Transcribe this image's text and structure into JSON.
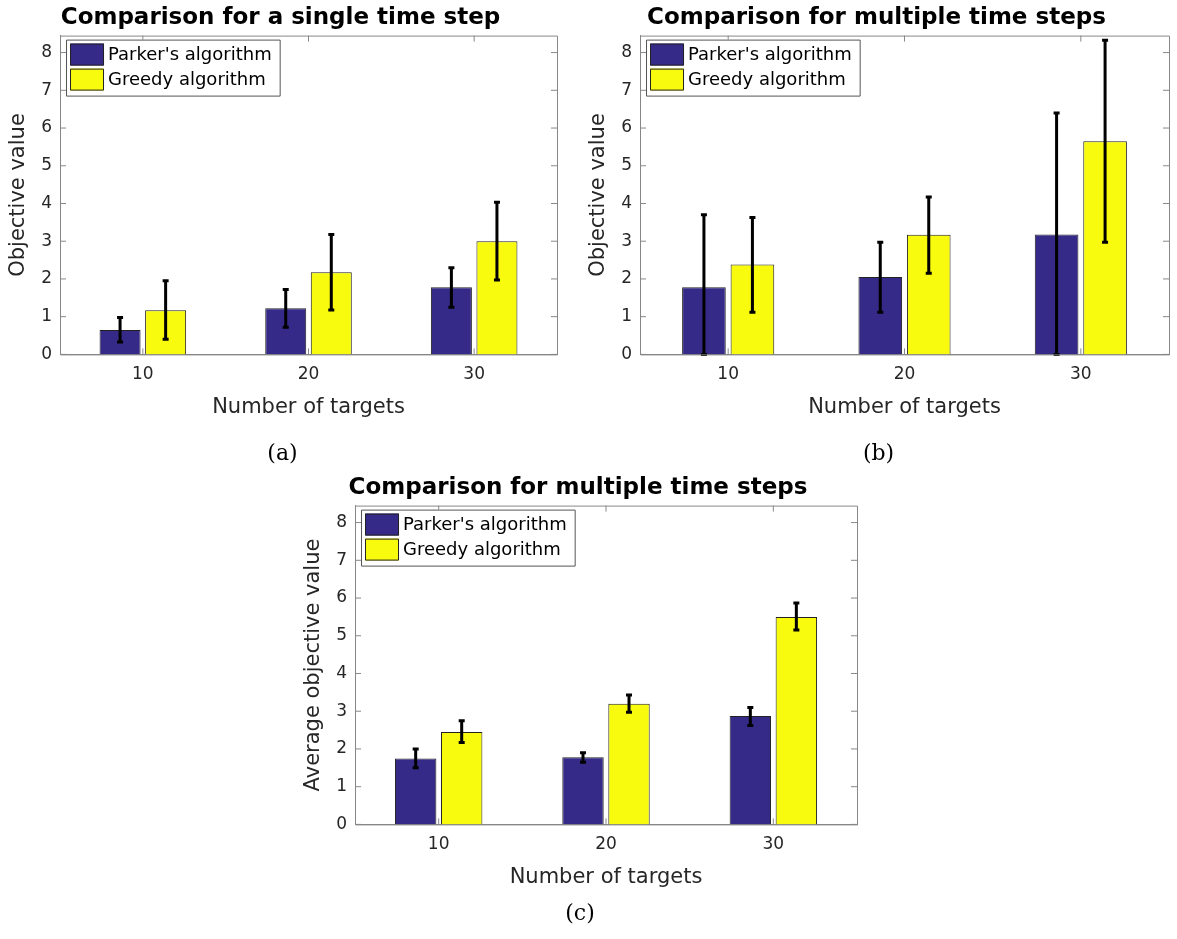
{
  "chart_data": [
    {
      "type": "bar",
      "title": "Comparison for a single time step",
      "xlabel": "Number of targets",
      "ylabel": "Objective value",
      "categories": [
        "10",
        "20",
        "30"
      ],
      "series": [
        {
          "name": "Parker's algorithm",
          "color": "#352a87",
          "values": [
            0.65,
            1.22,
            1.78
          ],
          "errors": [
            [
              0.33,
              0.98
            ],
            [
              0.72,
              1.72
            ],
            [
              1.25,
              2.3
            ]
          ]
        },
        {
          "name": "Greedy algorithm",
          "color": "#f9fb0e",
          "values": [
            1.17,
            2.18,
            3.0
          ],
          "errors": [
            [
              0.4,
              1.95
            ],
            [
              1.18,
              3.18
            ],
            [
              1.97,
              4.03
            ]
          ]
        }
      ],
      "ylim": [
        0,
        8.45
      ],
      "yticks": [
        0,
        1,
        2,
        3,
        4,
        5,
        6,
        7,
        8
      ],
      "grid": false,
      "legend": "top left",
      "annotations": [
        "(a)"
      ]
    },
    {
      "type": "bar",
      "title": "Comparison for multiple time steps",
      "xlabel": "Number of targets",
      "ylabel": "Objective value",
      "categories": [
        "10",
        "20",
        "30"
      ],
      "series": [
        {
          "name": "Parker's algorithm",
          "color": "#352a87",
          "values": [
            1.78,
            2.05,
            3.18
          ],
          "errors": [
            [
              0,
              3.7
            ],
            [
              1.12,
              2.97
            ],
            [
              0,
              6.4
            ]
          ]
        },
        {
          "name": "Greedy algorithm",
          "color": "#f9fb0e",
          "values": [
            2.38,
            3.17,
            5.65
          ],
          "errors": [
            [
              1.12,
              3.63
            ],
            [
              2.15,
              4.17
            ],
            [
              2.97,
              8.33
            ]
          ]
        }
      ],
      "ylim": [
        0,
        8.45
      ],
      "yticks": [
        0,
        1,
        2,
        3,
        4,
        5,
        6,
        7,
        8
      ],
      "grid": false,
      "legend": "top left",
      "annotations": [
        "(b)"
      ]
    },
    {
      "type": "bar",
      "title": "Comparison for multiple time steps",
      "xlabel": "Number of targets",
      "ylabel": "Average objective value",
      "categories": [
        "10",
        "20",
        "30"
      ],
      "series": [
        {
          "name": "Parker's algorithm",
          "color": "#352a87",
          "values": [
            1.75,
            1.78,
            2.87
          ],
          "errors": [
            [
              1.5,
              2.0
            ],
            [
              1.65,
              1.9
            ],
            [
              2.62,
              3.1
            ]
          ]
        },
        {
          "name": "Greedy algorithm",
          "color": "#f9fb0e",
          "values": [
            2.45,
            3.2,
            5.5
          ],
          "errors": [
            [
              2.17,
              2.75
            ],
            [
              2.97,
              3.43
            ],
            [
              5.15,
              5.87
            ]
          ]
        }
      ],
      "ylim": [
        0,
        8.45
      ],
      "yticks": [
        0,
        1,
        2,
        3,
        4,
        5,
        6,
        7,
        8
      ],
      "grid": false,
      "legend": "top left",
      "annotations": [
        "(c)"
      ]
    }
  ]
}
